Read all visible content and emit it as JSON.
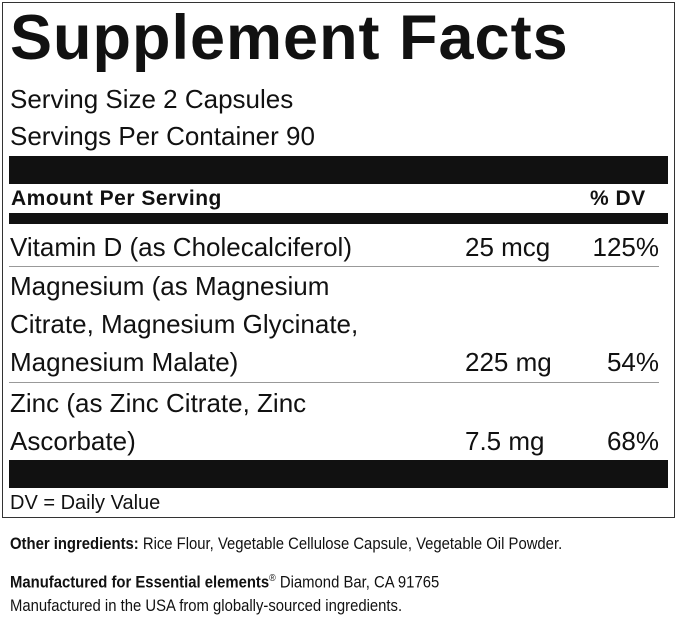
{
  "label": {
    "title": "Supplement Facts",
    "serving_size": "Serving Size 2 Capsules",
    "servings_per_container": "Servings Per Container 90",
    "header_amount": "Amount Per Serving",
    "header_dv": "% DV",
    "rows": [
      {
        "lines": [
          "Vitamin D (as Cholecalciferol)"
        ],
        "amount": "25 mcg",
        "dv": "125%"
      },
      {
        "lines": [
          "Magnesium (as Magnesium",
          "Citrate, Magnesium Glycinate,",
          "Magnesium Malate)"
        ],
        "amount": "225 mg",
        "dv": "54%"
      },
      {
        "lines": [
          "Zinc (as Zinc Citrate, Zinc",
          "Ascorbate)"
        ],
        "amount": "7.5 mg",
        "dv": "68%"
      }
    ],
    "footnote": "DV = Daily Value"
  },
  "footer": {
    "other_label": "Other ingredients:",
    "other_text": " Rice Flour, Vegetable Cellulose Capsule, Vegetable Oil Powder.",
    "mfr_label": "Manufactured for Essential elements",
    "mfr_reg": "®",
    "mfr_text": " Diamond Bar, CA 91765",
    "origin": "Manufactured in the USA from globally-sourced ingredients."
  }
}
